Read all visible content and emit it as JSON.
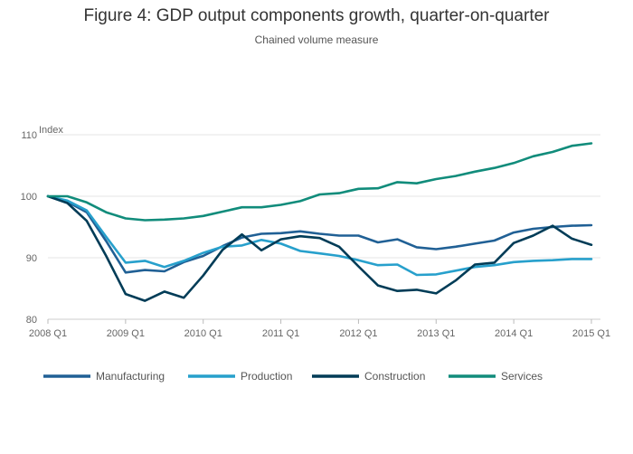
{
  "chart_data": {
    "type": "line",
    "title": "Figure 4: GDP output components growth, quarter-on-quarter",
    "subtitle": "Chained volume measure",
    "ylabel": "Index",
    "xlabel": "",
    "ylim": [
      80,
      110
    ],
    "yticks": [
      80,
      90,
      100,
      110
    ],
    "grid": true,
    "legend_position": "bottom",
    "x": [
      "2008 Q1",
      "2008 Q2",
      "2008 Q3",
      "2008 Q4",
      "2009 Q1",
      "2009 Q2",
      "2009 Q3",
      "2009 Q4",
      "2010 Q1",
      "2010 Q2",
      "2010 Q3",
      "2010 Q4",
      "2011 Q1",
      "2011 Q2",
      "2011 Q3",
      "2011 Q4",
      "2012 Q1",
      "2012 Q2",
      "2012 Q3",
      "2012 Q4",
      "2013 Q1",
      "2013 Q2",
      "2013 Q3",
      "2013 Q4",
      "2014 Q1",
      "2014 Q2",
      "2014 Q3",
      "2014 Q4",
      "2015 Q1"
    ],
    "xtick_labels": [
      "2008 Q1",
      "2009 Q1",
      "2010 Q1",
      "2011 Q1",
      "2012 Q1",
      "2013 Q1",
      "2014 Q1",
      "2015 Q1"
    ],
    "series": [
      {
        "name": "Manufacturing",
        "color": "#206095",
        "values": [
          100.0,
          99.1,
          97.4,
          92.7,
          87.6,
          88.0,
          87.8,
          89.3,
          90.3,
          91.9,
          93.3,
          93.9,
          94.0,
          94.3,
          93.9,
          93.6,
          93.6,
          92.5,
          93.0,
          91.7,
          91.4,
          91.8,
          92.3,
          92.8,
          94.1,
          94.7,
          95.0,
          95.2,
          95.3
        ]
      },
      {
        "name": "Production",
        "color": "#27a0cc",
        "values": [
          100.0,
          99.3,
          97.7,
          93.4,
          89.2,
          89.5,
          88.5,
          89.5,
          90.8,
          91.8,
          92.0,
          92.9,
          92.3,
          91.1,
          90.7,
          90.3,
          89.6,
          88.8,
          88.9,
          87.2,
          87.3,
          87.9,
          88.5,
          88.8,
          89.3,
          89.5,
          89.6,
          89.8,
          89.8
        ]
      },
      {
        "name": "Construction",
        "color": "#003c57",
        "values": [
          100.0,
          98.9,
          96.0,
          90.3,
          84.1,
          83.0,
          84.5,
          83.5,
          87.1,
          91.3,
          93.8,
          91.2,
          93.0,
          93.5,
          93.2,
          91.8,
          88.6,
          85.5,
          84.6,
          84.8,
          84.2,
          86.3,
          88.9,
          89.2,
          92.4,
          93.6,
          95.2,
          93.1,
          92.1
        ]
      },
      {
        "name": "Services",
        "color": "#118c7b",
        "values": [
          100.0,
          100.0,
          99.0,
          97.4,
          96.4,
          96.1,
          96.2,
          96.4,
          96.8,
          97.5,
          98.2,
          98.2,
          98.6,
          99.2,
          100.3,
          100.5,
          101.2,
          101.3,
          102.3,
          102.1,
          102.8,
          103.3,
          104.0,
          104.6,
          105.4,
          106.5,
          107.2,
          108.2,
          108.6
        ]
      }
    ]
  }
}
